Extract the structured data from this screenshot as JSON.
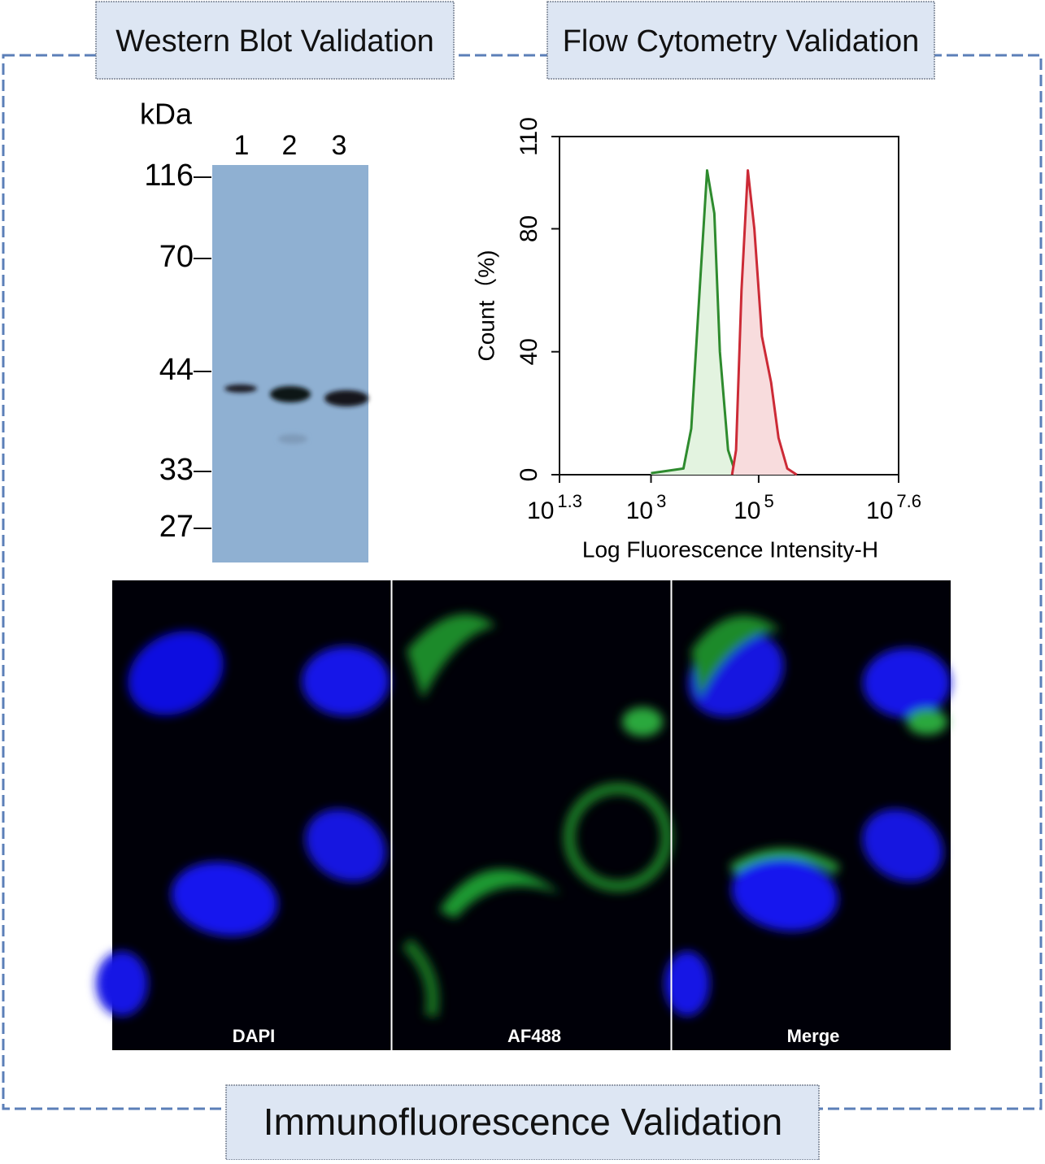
{
  "western_blot": {
    "title": "Western Blot Validation",
    "unit": "kDa",
    "lanes": [
      "1",
      "2",
      "3"
    ],
    "markers": [
      "116",
      "70",
      "44",
      "33",
      "27"
    ]
  },
  "chart_data": {
    "type": "line",
    "title": "Flow Cytometry Validation",
    "x_label": "Log Fluorescence Intensity-H",
    "y_label": "Count（%)",
    "x_scale": "log",
    "xlim": [
      19.95,
      39810717
    ],
    "xticks": [
      {
        "value": 19.95,
        "label": "10",
        "exponent": "1.3"
      },
      {
        "value": 1000,
        "label": "10",
        "exponent": "3"
      },
      {
        "value": 100000,
        "label": "10",
        "exponent": "5"
      },
      {
        "value": 39810717,
        "label": "10",
        "exponent": "7.6"
      }
    ],
    "ylim": [
      0,
      110
    ],
    "yticks": [
      0,
      40,
      80,
      110
    ],
    "series": [
      {
        "color": "#2e8b2e",
        "fill": "#e3f3e0",
        "x": [
          1000,
          4000,
          5600,
          8000,
          11000,
          15000,
          19000,
          27000,
          38000
        ],
        "values": [
          0.5,
          2,
          15,
          60,
          99,
          85,
          40,
          8,
          0
        ]
      },
      {
        "color": "#cc2a36",
        "fill": "#f8dcdd",
        "x": [
          32000,
          38000,
          48000,
          63000,
          83000,
          115000,
          170000,
          234000,
          340000,
          510000
        ],
        "values": [
          0,
          8,
          60,
          99,
          80,
          45,
          30,
          12,
          2,
          0
        ]
      }
    ]
  },
  "immunofluorescence": {
    "title": "Immunofluorescence Validation",
    "channels": [
      "DAPI",
      "AF488",
      "Merge"
    ]
  }
}
